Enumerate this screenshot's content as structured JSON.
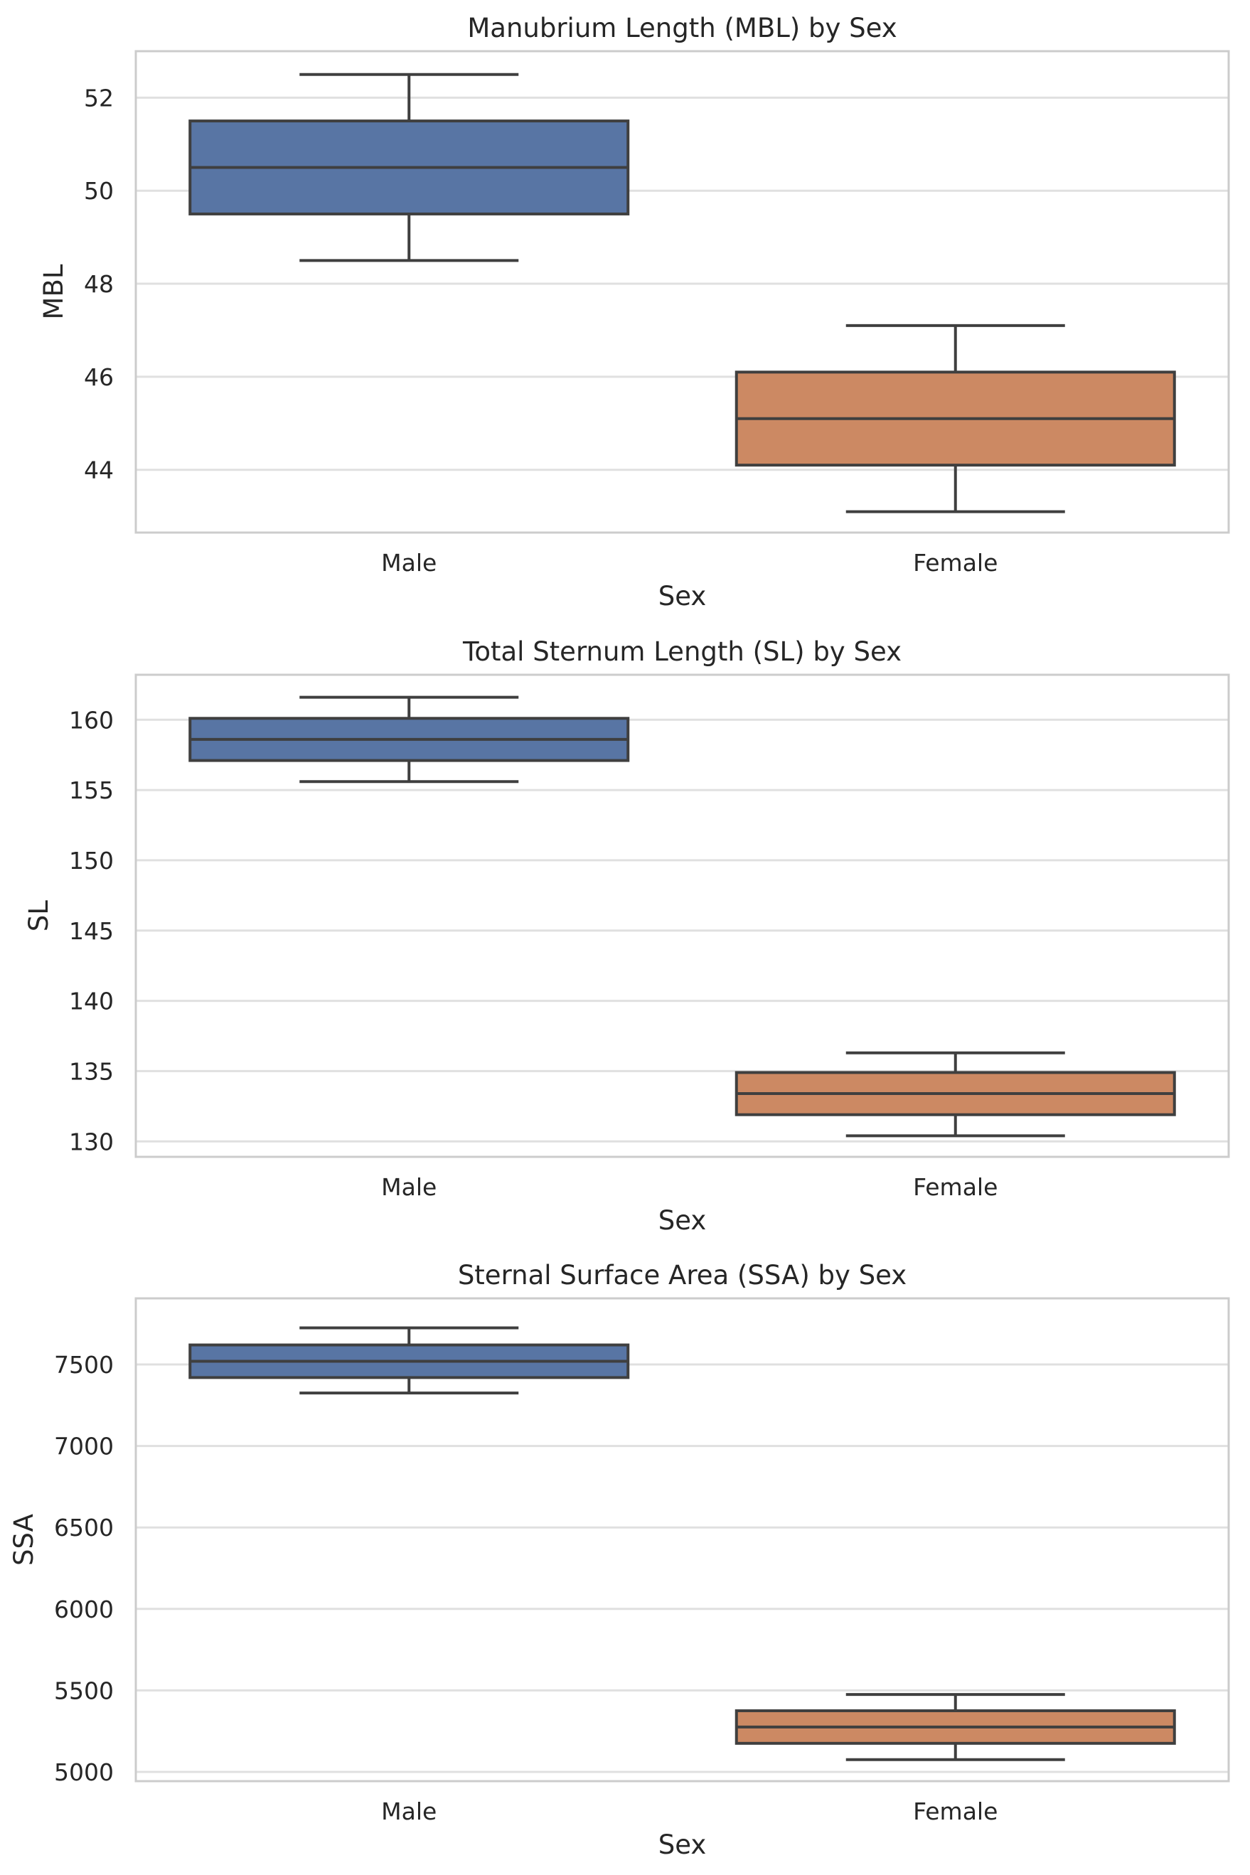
{
  "chart_data": [
    {
      "type": "box",
      "title": "Manubrium Length (MBL) by Sex",
      "xlabel": "Sex",
      "ylabel": "MBL",
      "categories": [
        "Male",
        "Female"
      ],
      "ylim": [
        42.65,
        53.0
      ],
      "yticks": [
        44,
        46,
        48,
        50,
        52
      ],
      "grid": true,
      "boxes": [
        {
          "category": "Male",
          "whisker_low": 48.5,
          "q1": 49.5,
          "median": 50.5,
          "q3": 51.5,
          "whisker_high": 52.5,
          "color": "#5875a4"
        },
        {
          "category": "Female",
          "whisker_low": 43.1,
          "q1": 44.1,
          "median": 45.1,
          "q3": 46.1,
          "whisker_high": 47.1,
          "color": "#cc8963"
        }
      ]
    },
    {
      "type": "box",
      "title": "Total Sternum Length (SL) by Sex",
      "xlabel": "Sex",
      "ylabel": "SL",
      "categories": [
        "Male",
        "Female"
      ],
      "ylim": [
        128.9,
        163.2
      ],
      "yticks": [
        130,
        135,
        140,
        145,
        150,
        155,
        160
      ],
      "grid": true,
      "boxes": [
        {
          "category": "Male",
          "whisker_low": 155.6,
          "q1": 157.1,
          "median": 158.6,
          "q3": 160.1,
          "whisker_high": 161.6,
          "color": "#5875a4"
        },
        {
          "category": "Female",
          "whisker_low": 130.4,
          "q1": 131.9,
          "median": 133.4,
          "q3": 134.9,
          "whisker_high": 136.3,
          "color": "#cc8963"
        }
      ]
    },
    {
      "type": "box",
      "title": "Sternal Surface Area (SSA) by Sex",
      "xlabel": "Sex",
      "ylabel": "SSA",
      "categories": [
        "Male",
        "Female"
      ],
      "ylim": [
        4943,
        7906
      ],
      "yticks": [
        5000,
        5500,
        6000,
        6500,
        7000,
        7500
      ],
      "grid": true,
      "boxes": [
        {
          "category": "Male",
          "whisker_low": 7325,
          "q1": 7420,
          "median": 7520,
          "q3": 7620,
          "whisker_high": 7725,
          "color": "#5875a4"
        },
        {
          "category": "Female",
          "whisker_low": 5075,
          "q1": 5175,
          "median": 5275,
          "q3": 5375,
          "whisker_high": 5475,
          "color": "#cc8963"
        }
      ]
    }
  ]
}
